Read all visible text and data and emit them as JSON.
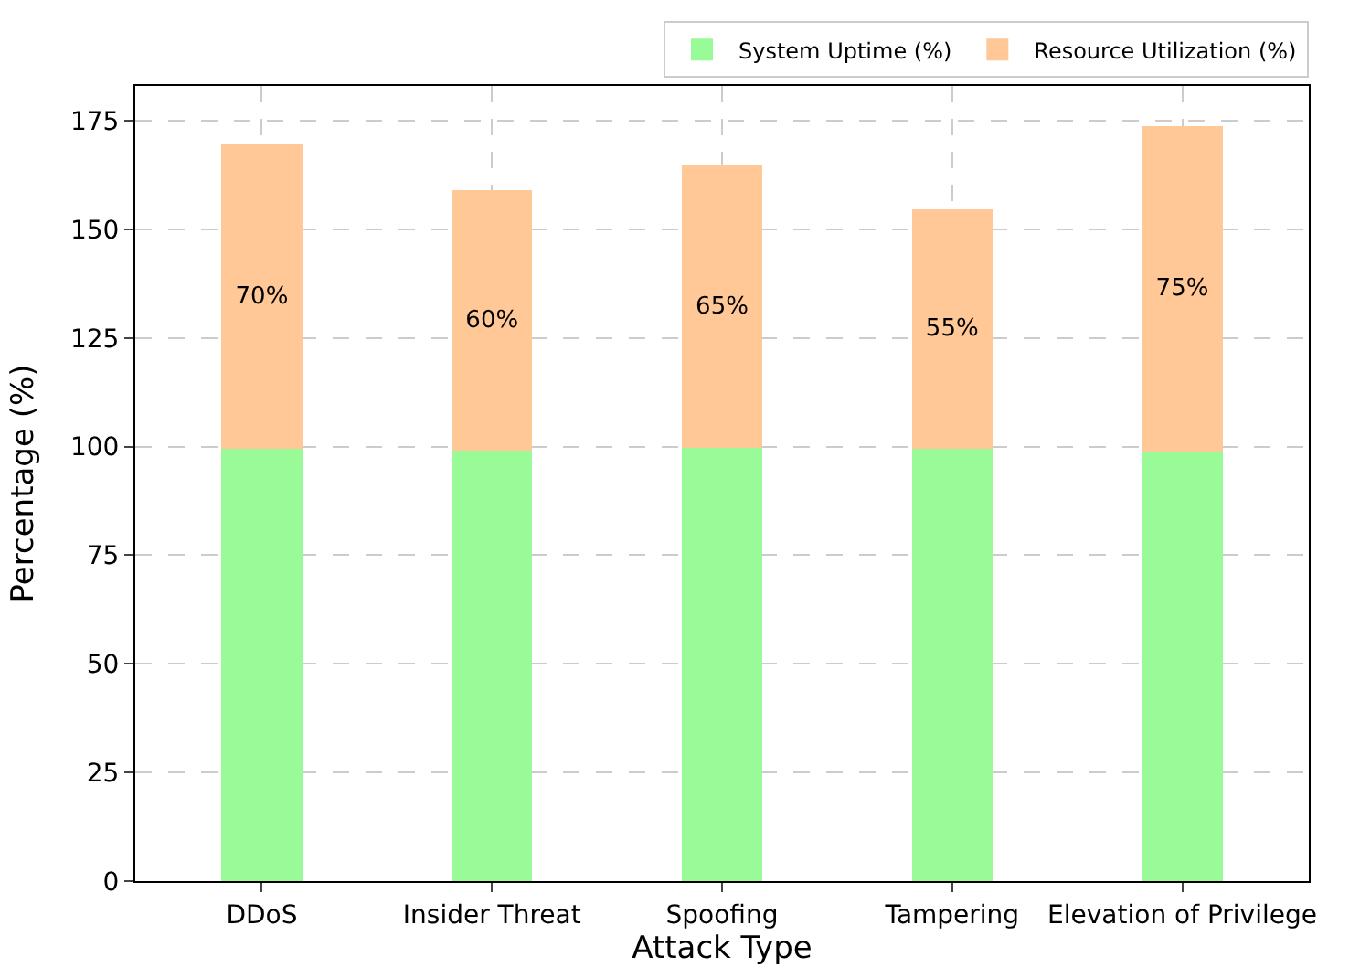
{
  "chart_data": {
    "type": "bar",
    "stacked": true,
    "xlabel": "Attack Type",
    "ylabel": "Percentage (%)",
    "categories": [
      "DDoS",
      "Insider Threat",
      "Spoofing",
      "Tampering",
      "Elevation of Privilege"
    ],
    "series": [
      {
        "name": "System Uptime (%)",
        "color": "#98fb98",
        "values": [
          99.5,
          99,
          99.7,
          99.6,
          98.8
        ]
      },
      {
        "name": "Resource Utilization (%)",
        "color": "#ffc896",
        "values": [
          70,
          60,
          65,
          55,
          75
        ],
        "value_labels": [
          "70%",
          "60%",
          "65%",
          "55%",
          "75%"
        ]
      }
    ],
    "ylim": [
      0,
      183
    ],
    "yticks": [
      0,
      25,
      50,
      75,
      100,
      125,
      150,
      175
    ],
    "grid": true,
    "legend": "top"
  }
}
